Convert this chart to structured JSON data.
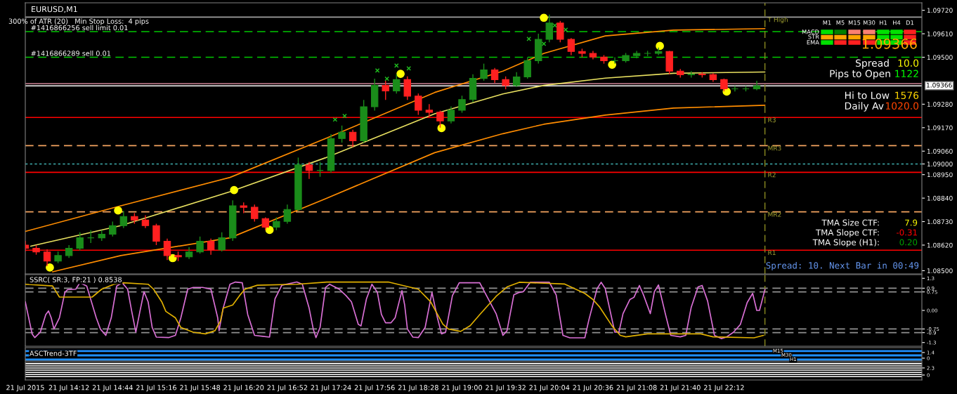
{
  "chart_data": [
    {
      "type": "candlestick",
      "title": "EURUSD,M1",
      "x": [
        "2015-07-21T13:40",
        "2015-07-21T13:48",
        "2015-07-21T13:56",
        "2015-07-21T14:04",
        "2015-07-21T14:12",
        "2015-07-21T14:20",
        "2015-07-21T14:28",
        "2015-07-21T14:36",
        "2015-07-21T14:44",
        "2015-07-21T14:52",
        "2015-07-21T15:00",
        "2015-07-21T15:08",
        "2015-07-21T15:16",
        "2015-07-21T15:24",
        "2015-07-21T15:32",
        "2015-07-21T15:40",
        "2015-07-21T15:48",
        "2015-07-21T15:56",
        "2015-07-21T16:04",
        "2015-07-21T16:12",
        "2015-07-21T16:20",
        "2015-07-21T16:28",
        "2015-07-21T16:36",
        "2015-07-21T16:44",
        "2015-07-21T16:52",
        "2015-07-21T17:00",
        "2015-07-21T17:08",
        "2015-07-21T17:16",
        "2015-07-21T17:24",
        "2015-07-21T17:32",
        "2015-07-21T17:40",
        "2015-07-21T17:48",
        "2015-07-21T17:56",
        "2015-07-21T18:04",
        "2015-07-21T18:12",
        "2015-07-21T18:20",
        "2015-07-21T18:28",
        "2015-07-21T18:36",
        "2015-07-21T18:44",
        "2015-07-21T18:52",
        "2015-07-21T19:00",
        "2015-07-21T19:08",
        "2015-07-21T19:16",
        "2015-07-21T19:24",
        "2015-07-21T19:32",
        "2015-07-21T19:40",
        "2015-07-21T19:48",
        "2015-07-21T19:56",
        "2015-07-21T20:04",
        "2015-07-21T20:12",
        "2015-07-21T20:20",
        "2015-07-21T20:28",
        "2015-07-21T20:36",
        "2015-07-21T20:44",
        "2015-07-21T20:52",
        "2015-07-21T21:00",
        "2015-07-21T21:08",
        "2015-07-21T21:16",
        "2015-07-21T21:24",
        "2015-07-21T21:32",
        "2015-07-21T21:40",
        "2015-07-21T21:48",
        "2015-07-21T21:56",
        "2015-07-21T22:04",
        "2015-07-21T22:12",
        "2015-07-21T22:20",
        "2015-07-21T22:28",
        "2015-07-21T22:36"
      ],
      "ohlc": [
        [
          1.0862,
          1.0864,
          1.0859,
          1.08605
        ],
        [
          1.08605,
          1.0862,
          1.08575,
          1.08588
        ],
        [
          1.08588,
          1.086,
          1.08522,
          1.08545
        ],
        [
          1.08545,
          1.0859,
          1.08535,
          1.08571
        ],
        [
          1.08571,
          1.0862,
          1.0856,
          1.08605
        ],
        [
          1.08605,
          1.0868,
          1.08595,
          1.08654
        ],
        [
          1.08654,
          1.0869,
          1.0863,
          1.08654
        ],
        [
          1.08654,
          1.0869,
          1.0864,
          1.08671
        ],
        [
          1.08671,
          1.0873,
          1.0866,
          1.08711
        ],
        [
          1.08711,
          1.0878,
          1.087,
          1.08754
        ],
        [
          1.08754,
          1.0877,
          1.0872,
          1.08737
        ],
        [
          1.08737,
          1.0876,
          1.087,
          1.08711
        ],
        [
          1.08711,
          1.0872,
          1.0862,
          1.08638
        ],
        [
          1.08638,
          1.0865,
          1.0855,
          1.08571
        ],
        [
          1.08571,
          1.0859,
          1.08545,
          1.08565
        ],
        [
          1.08565,
          1.0861,
          1.08555,
          1.08588
        ],
        [
          1.08588,
          1.0866,
          1.0858,
          1.08638
        ],
        [
          1.08638,
          1.0865,
          1.08575,
          1.08598
        ],
        [
          1.08598,
          1.0868,
          1.0859,
          1.08654
        ],
        [
          1.08654,
          1.0883,
          1.0864,
          1.08804
        ],
        [
          1.08804,
          1.0882,
          1.0877,
          1.08797
        ],
        [
          1.08797,
          1.0881,
          1.0873,
          1.08744
        ],
        [
          1.08744,
          1.0875,
          1.0869,
          1.08704
        ],
        [
          1.08704,
          1.0875,
          1.0869,
          1.08731
        ],
        [
          1.08731,
          1.0881,
          1.0872,
          1.08787
        ],
        [
          1.08787,
          1.0903,
          1.0878,
          1.08996
        ],
        [
          1.08996,
          1.0901,
          1.0893,
          1.0897
        ],
        [
          1.0897,
          1.0901,
          1.0894,
          1.0897
        ],
        [
          1.0897,
          1.0914,
          1.0896,
          1.09119
        ],
        [
          1.09119,
          1.0918,
          1.091,
          1.09149
        ],
        [
          1.09149,
          1.0916,
          1.0908,
          1.09109
        ],
        [
          1.09109,
          1.093,
          1.091,
          1.09268
        ],
        [
          1.09268,
          1.094,
          1.0925,
          1.09368
        ],
        [
          1.09368,
          1.0939,
          1.093,
          1.09342
        ],
        [
          1.09342,
          1.0942,
          1.0933,
          1.09395
        ],
        [
          1.09395,
          1.0941,
          1.093,
          1.09318
        ],
        [
          1.09318,
          1.0933,
          1.0923,
          1.09252
        ],
        [
          1.09252,
          1.0928,
          1.0922,
          1.09242
        ],
        [
          1.09242,
          1.0925,
          1.0917,
          1.09202
        ],
        [
          1.09202,
          1.0927,
          1.0919,
          1.09252
        ],
        [
          1.09252,
          1.0932,
          1.0924,
          1.09302
        ],
        [
          1.09302,
          1.0942,
          1.0929,
          1.09401
        ],
        [
          1.09401,
          1.0947,
          1.0939,
          1.09441
        ],
        [
          1.09441,
          1.0945,
          1.0938,
          1.09395
        ],
        [
          1.09395,
          1.0941,
          1.0935,
          1.09368
        ],
        [
          1.09368,
          1.0943,
          1.0936,
          1.09408
        ],
        [
          1.09408,
          1.095,
          1.094,
          1.09484
        ],
        [
          1.09484,
          1.0961,
          1.0947,
          1.09584
        ],
        [
          1.09584,
          1.097,
          1.0957,
          1.0966
        ],
        [
          1.0966,
          1.0967,
          1.0957,
          1.09584
        ],
        [
          1.09584,
          1.0959,
          1.0951,
          1.09527
        ],
        [
          1.09527,
          1.0954,
          1.095,
          1.09518
        ],
        [
          1.09518,
          1.0953,
          1.0949,
          1.09501
        ],
        [
          1.09501,
          1.0951,
          1.0947,
          1.09484
        ],
        [
          1.09484,
          1.095,
          1.0947,
          1.09484
        ],
        [
          1.09484,
          1.0952,
          1.09475,
          1.09508
        ],
        [
          1.09508,
          1.0953,
          1.09495,
          1.09518
        ],
        [
          1.09518,
          1.0953,
          1.09505,
          1.09518
        ],
        [
          1.09518,
          1.09545,
          1.0951,
          1.09527
        ],
        [
          1.09527,
          1.0953,
          1.0942,
          1.09435
        ],
        [
          1.09435,
          1.09445,
          1.09405,
          1.09418
        ],
        [
          1.09418,
          1.09435,
          1.09405,
          1.09421
        ],
        [
          1.09421,
          1.0943,
          1.09405,
          1.09418
        ],
        [
          1.09418,
          1.09425,
          1.09385,
          1.09395
        ],
        [
          1.09395,
          1.094,
          1.0934,
          1.09352
        ],
        [
          1.09352,
          1.09365,
          1.0934,
          1.09352
        ],
        [
          1.09352,
          1.09365,
          1.0934,
          1.09352
        ],
        [
          1.09352,
          1.0939,
          1.09345,
          1.09366
        ]
      ],
      "colors": [
        "#ff2020",
        "#ff2020",
        "#ff2020",
        "#1a8c1a",
        "#1a8c1a",
        "#1a8c1a",
        "#1a8c1a",
        "#1a8c1a",
        "#1a8c1a",
        "#1a8c1a",
        "#ff2020",
        "#ff2020",
        "#ff2020",
        "#ff2020",
        "#ff2020",
        "#1a8c1a",
        "#1a8c1a",
        "#ff2020",
        "#1a8c1a",
        "#1a8c1a",
        "#ff2020",
        "#ff2020",
        "#ff2020",
        "#1a8c1a",
        "#1a8c1a",
        "#1a8c1a",
        "#ff2020",
        "#1a8c1a",
        "#1a8c1a",
        "#1a8c1a",
        "#ff2020",
        "#1a8c1a",
        "#1a8c1a",
        "#ff2020",
        "#1a8c1a",
        "#ff2020",
        "#ff2020",
        "#ff2020",
        "#ff2020",
        "#1a8c1a",
        "#1a8c1a",
        "#1a8c1a",
        "#1a8c1a",
        "#ff2020",
        "#ff2020",
        "#1a8c1a",
        "#1a8c1a",
        "#1a8c1a",
        "#1a8c1a",
        "#ff2020",
        "#ff2020",
        "#ff2020",
        "#ff2020",
        "#ff2020",
        "#1a8c1a",
        "#1a8c1a",
        "#1a8c1a",
        "#1a8c1a",
        "#1a8c1a",
        "#ff2020",
        "#ff2020",
        "#1a8c1a",
        "#ff2020",
        "#ff2020",
        "#ff2020",
        "#1a8c1a",
        "#1a8c1a",
        "#1a8c1a"
      ],
      "series": [
        {
          "type": "line",
          "color": "#ff8c00",
          "x": [
            "2015-07-21T13:40",
            "2015-07-21T14:50",
            "2015-07-21T16:10",
            "2015-07-21T17:20",
            "2015-07-21T18:40",
            "2015-07-21T19:30",
            "2015-07-21T20:00",
            "2015-07-21T20:45",
            "2015-07-21T21:35",
            "2015-07-21T22:42"
          ],
          "values": [
            1.08684,
            1.08804,
            1.08937,
            1.09119,
            1.09335,
            1.09435,
            1.09518,
            1.096,
            1.09627,
            1.09634
          ]
        },
        {
          "type": "line",
          "color": "#e8e060",
          "x": [
            "2015-07-21T13:44",
            "2015-07-21T14:50",
            "2015-07-21T16:10",
            "2015-07-21T17:20",
            "2015-07-21T18:40",
            "2015-07-21T19:30",
            "2015-07-21T20:00",
            "2015-07-21T20:45",
            "2015-07-21T21:35",
            "2015-07-21T22:42"
          ],
          "values": [
            1.08615,
            1.08711,
            1.0887,
            1.09029,
            1.09235,
            1.09328,
            1.09368,
            1.09402,
            1.09425,
            1.09431
          ]
        },
        {
          "type": "line",
          "color": "#ff8c00",
          "x": [
            "2015-07-21T14:00",
            "2015-07-21T14:50",
            "2015-07-21T16:10",
            "2015-07-21T17:20",
            "2015-07-21T18:40",
            "2015-07-21T19:30",
            "2015-07-21T20:00",
            "2015-07-21T20:45",
            "2015-07-21T21:35",
            "2015-07-21T22:42"
          ],
          "values": [
            1.08495,
            1.08571,
            1.08654,
            1.08837,
            1.09053,
            1.09142,
            1.09186,
            1.09229,
            1.09262,
            1.09275
          ]
        },
        {
          "type": "scatter",
          "marker": "circle",
          "color": "#ffff00",
          "x": [
            "2015-07-21T13:58",
            "2015-07-21T14:48",
            "2015-07-21T15:28",
            "2015-07-21T16:13",
            "2015-07-21T16:39",
            "2015-07-21T18:15",
            "2015-07-21T18:45",
            "2015-07-21T20:00",
            "2015-07-21T20:50",
            "2015-07-21T21:25",
            "2015-07-21T22:14"
          ],
          "values": [
            1.08515,
            1.08782,
            1.08559,
            1.08878,
            1.08691,
            1.09422,
            1.09168,
            1.09685,
            1.09465,
            1.09553,
            1.09339
          ]
        },
        {
          "type": "scatter",
          "marker": "cross",
          "color": "#20c020",
          "x": [
            "2015-07-21T17:27",
            "2015-07-21T17:34",
            "2015-07-21T17:58",
            "2015-07-21T18:05",
            "2015-07-21T18:12",
            "2015-07-21T18:21",
            "2015-07-21T19:49",
            "2015-07-21T20:00",
            "2015-07-21T20:08",
            "2015-07-21T20:16"
          ],
          "values": [
            1.09208,
            1.09225,
            1.09438,
            1.09399,
            1.09461,
            1.09448,
            1.09586,
            1.09563,
            1.09649,
            1.09629
          ]
        }
      ],
      "xlim": [
        "2015-07-21T13:40",
        "2015-07-22T00:37"
      ],
      "ylim": [
        1.08485,
        1.09755
      ],
      "yticks": [
        {
          "value": 1.0972,
          "label": "1.09720"
        },
        {
          "value": 1.0961,
          "label": "1.09610"
        },
        {
          "value": 1.095,
          "label": "1.09500"
        },
        {
          "value": 1.0928,
          "label": "1.09280"
        },
        {
          "value": 1.0917,
          "label": "1.09170"
        },
        {
          "value": 1.0906,
          "label": "1.09060"
        },
        {
          "value": 1.09,
          "label": "1.09000"
        },
        {
          "value": 1.0895,
          "label": "1.08950"
        },
        {
          "value": 1.0884,
          "label": "1.08840"
        },
        {
          "value": 1.0873,
          "label": "1.08730"
        },
        {
          "value": 1.0862,
          "label": "1.08620"
        },
        {
          "value": 1.085,
          "label": "1.08500"
        }
      ],
      "tick_labels": "y",
      "ref_lines": [
        {
          "axis": "y",
          "value": 1.09688,
          "label": "T High",
          "color": "#a0a0a0"
        },
        {
          "axis": "y",
          "value": 1.0962,
          "label": "#1416866256 sell limit 0.01",
          "color": "#00c800",
          "line_style": "dashed"
        },
        {
          "axis": "y",
          "value": 1.095,
          "label": "#1416866289 sell 0.01",
          "color": "#00c800",
          "line_style": "dashed"
        },
        {
          "axis": "y",
          "value": 1.09376,
          "color": "#b07080"
        },
        {
          "axis": "y",
          "value": 1.09366,
          "color": "#ffffff"
        },
        {
          "axis": "y",
          "value": 1.09218,
          "label": "R3",
          "color": "#ff0000"
        },
        {
          "axis": "y",
          "value": 1.09086,
          "label": "MR3",
          "color": "#f4a460",
          "line_style": "dashed"
        },
        {
          "axis": "y",
          "value": 1.09,
          "color": "#40b0b0",
          "line_style": "dotted"
        },
        {
          "axis": "y",
          "value": 1.08961,
          "label": "R2",
          "color": "#ff0000"
        },
        {
          "axis": "y",
          "value": 1.08776,
          "label": "MR2",
          "color": "#f4a460",
          "line_style": "dashed"
        },
        {
          "axis": "y",
          "value": 1.08596,
          "label": "R1",
          "color": "#ff0000"
        },
        {
          "axis": "x",
          "value": "2015-07-21T22:42",
          "color": "#8a8a20",
          "line_style": "dashed"
        }
      ],
      "annotations": [
        "300% of ATR (20)   Min Stop Loss:  4 pips",
        "M1",
        "M5",
        "M15",
        "M30",
        "H1",
        "H4",
        "D1",
        "MACD",
        "STR",
        "EMA",
        "1.09366",
        "Spread",
        "10.0",
        "Pips to Open",
        "1122",
        "Hi to Low",
        "1576",
        "Daily Av",
        "1020.0",
        "TMA Size CTF:",
        "7.9",
        "TMA Slope CTF:",
        "-0.31",
        "TMA Slope (H1):",
        "0.20",
        "Spread: 10. Next Bar in 00:49",
        "1.09366"
      ]
    },
    {
      "type": "line",
      "title": "SSRC( SR:3, FP:21 ) 0.8538",
      "series": [
        {
          "color": "#da70d6",
          "x": [
            "2015-07-21T13:40",
            "2015-07-21T13:45",
            "2015-07-21T13:47",
            "2015-07-21T13:51",
            "2015-07-21T13:55",
            "2015-07-21T13:57",
            "2015-07-21T13:59",
            "2015-07-21T14:01",
            "2015-07-21T14:05",
            "2015-07-21T14:09",
            "2015-07-21T14:11",
            "2015-07-21T14:17",
            "2015-07-21T14:20",
            "2015-07-21T14:25",
            "2015-07-21T14:32",
            "2015-07-21T14:35",
            "2015-07-21T14:39",
            "2015-07-21T14:43",
            "2015-07-21T14:47",
            "2015-07-21T14:51",
            "2015-07-21T14:55",
            "2015-07-21T14:58",
            "2015-07-21T15:01",
            "2015-07-21T15:04",
            "2015-07-21T15:07",
            "2015-07-21T15:10",
            "2015-07-21T15:13",
            "2015-07-21T15:16",
            "2015-07-21T15:25",
            "2015-07-21T15:30",
            "2015-07-21T15:34",
            "2015-07-21T15:39",
            "2015-07-21T15:43",
            "2015-07-21T15:50",
            "2015-07-21T15:56",
            "2015-07-21T16:01",
            "2015-07-21T16:02",
            "2015-07-21T16:05",
            "2015-07-21T16:10",
            "2015-07-21T16:14",
            "2015-07-21T16:19",
            "2015-07-21T16:23",
            "2015-07-21T16:28",
            "2015-07-21T16:34",
            "2015-07-21T16:39",
            "2015-07-21T16:43",
            "2015-07-21T16:48",
            "2015-07-21T16:59",
            "2015-07-21T17:03",
            "2015-07-21T17:08",
            "2015-07-21T17:11",
            "2015-07-21T17:13",
            "2015-07-21T17:16",
            "2015-07-21T17:20",
            "2015-07-21T17:23",
            "2015-07-21T17:30",
            "2015-07-21T17:35",
            "2015-07-21T17:39",
            "2015-07-21T17:44",
            "2015-07-21T17:46",
            "2015-07-21T17:50",
            "2015-07-21T17:54",
            "2015-07-21T17:58",
            "2015-07-21T18:01",
            "2015-07-21T18:04",
            "2015-07-21T18:08",
            "2015-07-21T18:11",
            "2015-07-21T18:16",
            "2015-07-21T18:18",
            "2015-07-21T18:20",
            "2015-07-21T18:24",
            "2015-07-21T18:28",
            "2015-07-21T18:33",
            "2015-07-21T18:38",
            "2015-07-21T18:42",
            "2015-07-21T18:45",
            "2015-07-21T18:48",
            "2015-07-21T18:53",
            "2015-07-21T18:58",
            "2015-07-21T19:13",
            "2015-07-21T19:25",
            "2015-07-21T19:30",
            "2015-07-21T19:33",
            "2015-07-21T19:38",
            "2015-07-21T19:42",
            "2015-07-21T19:45",
            "2015-07-21T19:50",
            "2015-07-21T20:04",
            "2015-07-21T20:09",
            "2015-07-21T20:14",
            "2015-07-21T20:19",
            "2015-07-21T20:30",
            "2015-07-21T20:33",
            "2015-07-21T20:39",
            "2015-07-21T20:42",
            "2015-07-21T20:45",
            "2015-07-21T20:50",
            "2015-07-21T20:52",
            "2015-07-21T20:55",
            "2015-07-21T20:58",
            "2015-07-21T21:03",
            "2015-07-21T21:06",
            "2015-07-21T21:10",
            "2015-07-21T21:13",
            "2015-07-21T21:18",
            "2015-07-21T21:21",
            "2015-07-21T21:24",
            "2015-07-21T21:29",
            "2015-07-21T21:33",
            "2015-07-21T21:40",
            "2015-07-21T21:44",
            "2015-07-21T21:48",
            "2015-07-21T21:53",
            "2015-07-21T21:56",
            "2015-07-21T22:00",
            "2015-07-21T22:05",
            "2015-07-21T22:10",
            "2015-07-21T22:14",
            "2015-07-21T22:19",
            "2015-07-21T22:24",
            "2015-07-21T22:29",
            "2015-07-21T22:33",
            "2015-07-21T22:36",
            "2015-07-21T22:38",
            "2015-07-21T22:41",
            "2015-07-21T22:42"
          ],
          "values": [
            0.35,
            -0.95,
            -1.1,
            -0.88,
            -0.17,
            -0.02,
            -0.3,
            -0.75,
            -0.3,
            0.73,
            0.84,
            0.86,
            1.12,
            0.99,
            -0.3,
            -0.75,
            -1.01,
            -0.3,
            0.99,
            1.12,
            0.86,
            -0.04,
            -0.88,
            -0.04,
            0.76,
            0.35,
            -0.69,
            -1.08,
            -1.1,
            -1.01,
            -0.3,
            0.86,
            0.93,
            0.93,
            0.86,
            -0.3,
            -0.82,
            0.09,
            1.06,
            1.15,
            1.12,
            -0.17,
            -1.01,
            -1.05,
            -1.08,
            0.47,
            1.02,
            1.15,
            1.06,
            0.09,
            -0.75,
            -1.1,
            -0.69,
            0.93,
            1.06,
            0.86,
            0.6,
            0.35,
            -0.56,
            -0.63,
            0.47,
            1.06,
            0.73,
            -0.17,
            -0.5,
            -0.5,
            -0.3,
            0.8,
            0.22,
            -0.75,
            -1.08,
            -1.1,
            -0.69,
            0.73,
            -0.3,
            -0.95,
            -0.88,
            0.6,
            1.12,
            1.12,
            -0.13,
            -1.01,
            -0.82,
            0.63,
            0.73,
            0.76,
            1.14,
            1.14,
            0.63,
            -1.01,
            -1.11,
            -1.11,
            -0.38,
            0.88,
            1.14,
            0.88,
            -0.38,
            -0.88,
            -0.88,
            -0.13,
            0.44,
            0.53,
            1.01,
            0.63,
            -0.13,
            0.76,
            1.03,
            -0.13,
            -1.01,
            -1.07,
            -1.01,
            0.13,
            0.95,
            1.01,
            0.38,
            -1.01,
            -1.14,
            -1.07,
            -0.88,
            -0.57,
            0.32,
            0.69,
            0.0,
            0.0,
            0.63,
            0.85
          ]
        },
        {
          "color": "#e0b000",
          "x": [
            "2015-07-21T13:40",
            "2015-07-21T14:00",
            "2015-07-21T14:05",
            "2015-07-21T14:29",
            "2015-07-21T14:36",
            "2015-07-21T14:45",
            "2015-07-21T14:52",
            "2015-07-21T15:10",
            "2015-07-21T15:14",
            "2015-07-21T15:20",
            "2015-07-21T15:23",
            "2015-07-21T15:30",
            "2015-07-21T15:34",
            "2015-07-21T15:43",
            "2015-07-21T15:52",
            "2015-07-21T15:59",
            "2015-07-21T16:03",
            "2015-07-21T16:05",
            "2015-07-21T16:12",
            "2015-07-21T16:17",
            "2015-07-21T16:21",
            "2015-07-21T16:30",
            "2015-07-21T16:59",
            "2015-07-21T17:21",
            "2015-07-21T18:06",
            "2015-07-21T18:28",
            "2015-07-21T18:37",
            "2015-07-21T18:46",
            "2015-07-21T18:50",
            "2015-07-21T18:59",
            "2015-07-21T19:06",
            "2015-07-21T19:13",
            "2015-07-21T19:25",
            "2015-07-21T19:33",
            "2015-07-21T19:42",
            "2015-07-21T20:15",
            "2015-07-21T20:30",
            "2015-07-21T20:36",
            "2015-07-21T20:41",
            "2015-07-21T20:50",
            "2015-07-21T20:56",
            "2015-07-21T21:00",
            "2015-07-21T21:16",
            "2015-07-21T21:55",
            "2015-07-21T22:04",
            "2015-07-21T22:34",
            "2015-07-21T22:41"
          ],
          "values": [
            1.06,
            0.99,
            0.54,
            0.54,
            0.86,
            1.06,
            1.12,
            1.06,
            0.86,
            0.35,
            -0.04,
            -0.3,
            -0.69,
            -0.88,
            -0.95,
            -0.82,
            -0.43,
            0.09,
            0.22,
            0.6,
            0.86,
            1.02,
            1.06,
            1.15,
            1.15,
            0.86,
            0.35,
            -0.56,
            -0.75,
            -0.85,
            -0.62,
            -0.17,
            0.57,
            0.95,
            1.14,
            1.07,
            0.69,
            0.44,
            0.13,
            -0.63,
            -1.01,
            -1.07,
            -0.95,
            -0.95,
            -1.07,
            -1.11,
            -1.01
          ]
        }
      ],
      "xlim": [
        "2015-07-21T13:40",
        "2015-07-22T00:37"
      ],
      "ylim": [
        -1.45,
        1.45
      ],
      "yticks": [
        1.3,
        0.9,
        0.75,
        {
          "value": 0,
          "label": "0.00"
        },
        -0.75,
        -0.9,
        -1.3
      ],
      "tick_labels": "y",
      "ref_lines": [
        {
          "axis": "y",
          "value": 0.9,
          "color": "#909090",
          "line_style": "dashed"
        },
        {
          "axis": "y",
          "value": 0.75,
          "color": "#909090",
          "line_style": "dashed"
        },
        {
          "axis": "y",
          "value": -0.75,
          "color": "#909090",
          "line_style": "dashed"
        },
        {
          "axis": "y",
          "value": -0.9,
          "color": "#909090",
          "line_style": "dashed"
        },
        {
          "axis": "x",
          "value": "2015-07-21T22:42",
          "color": "#8a8a20",
          "line_style": "dashed"
        }
      ]
    },
    {
      "type": "line",
      "title": "ASCTrend-3TF",
      "xlim": [
        "2015-07-21T13:40",
        "2015-07-22T00:37"
      ],
      "ylim": [
        -0.7,
        2.6
      ],
      "yticks": [
        1.4,
        0
      ],
      "tick_labels": "y",
      "bands": [
        {
          "axis": "y",
          "from": 1.5,
          "to": 2.0,
          "color": "#1e90ff"
        },
        {
          "axis": "y",
          "from": 0.45,
          "to": 0.95,
          "color": "#1e90ff"
        },
        {
          "axis": "y",
          "from": -0.6,
          "to": -0.1,
          "color": "#1e90ff"
        }
      ],
      "annotations": [
        "M15",
        "M30",
        "H1"
      ]
    },
    {
      "type": "line",
      "xlim": [
        "2015-07-21T13:40",
        "2015-07-22T00:37"
      ],
      "ylim": [
        -1.6,
        4.1
      ],
      "yticks": [
        2.3,
        0
      ],
      "xticks": [
        {
          "value": "2015-07-21T13:40",
          "label": "21 Jul 2015"
        },
        {
          "value": "2015-07-21T14:12",
          "label": "21 Jul 14:12"
        },
        {
          "value": "2015-07-21T14:44",
          "label": "21 Jul 14:44"
        },
        {
          "value": "2015-07-21T15:16",
          "label": "21 Jul 15:16"
        },
        {
          "value": "2015-07-21T15:48",
          "label": "21 Jul 15:48"
        },
        {
          "value": "2015-07-21T16:20",
          "label": "21 Jul 16:20"
        },
        {
          "value": "2015-07-21T16:52",
          "label": "21 Jul 16:52"
        },
        {
          "value": "2015-07-21T17:24",
          "label": "21 Jul 17:24"
        },
        {
          "value": "2015-07-21T17:56",
          "label": "21 Jul 17:56"
        },
        {
          "value": "2015-07-21T18:28",
          "label": "21 Jul 18:28"
        },
        {
          "value": "2015-07-21T19:00",
          "label": "21 Jul 19:00"
        },
        {
          "value": "2015-07-21T19:32",
          "label": "21 Jul 19:32"
        },
        {
          "value": "2015-07-21T20:04",
          "label": "21 Jul 20:04"
        },
        {
          "value": "2015-07-21T20:36",
          "label": "21 Jul 20:36"
        },
        {
          "value": "2015-07-21T21:08",
          "label": "21 Jul 21:08"
        },
        {
          "value": "2015-07-21T21:40",
          "label": "21 Jul 21:40"
        },
        {
          "value": "2015-07-21T22:12",
          "label": "21 Jul 22:12"
        }
      ],
      "bands": [
        {
          "axis": "y",
          "from": 3.5,
          "to": 3.85,
          "color": "#ffffff"
        },
        {
          "axis": "y",
          "from": 2.8,
          "to": 3.15,
          "color": "#ffffff"
        },
        {
          "axis": "y",
          "from": 2.1,
          "to": 2.45,
          "color": "#ffffff"
        },
        {
          "axis": "y",
          "from": 1.4,
          "to": 1.75,
          "color": "#ffffff"
        },
        {
          "axis": "y",
          "from": 0.7,
          "to": 1.05,
          "color": "#ffffff"
        },
        {
          "axis": "y",
          "from": 0.0,
          "to": 0.35,
          "color": "#ffffff"
        },
        {
          "axis": "y",
          "from": -0.7,
          "to": -0.35,
          "color": "#ffffff"
        }
      ]
    }
  ]
}
